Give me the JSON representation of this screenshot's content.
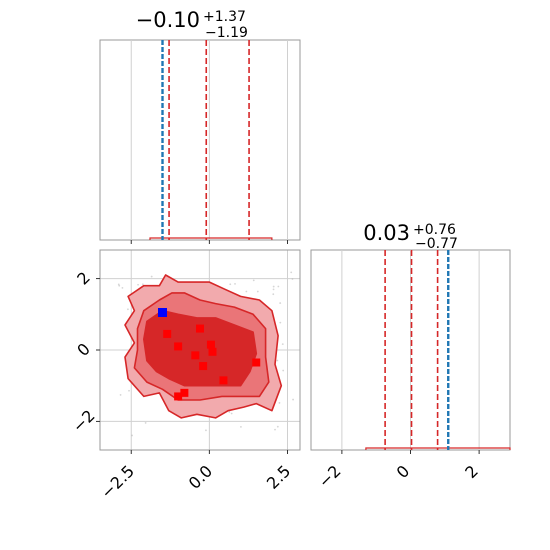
{
  "chart_data": [
    {
      "type": "histogram",
      "panel": "param-1-marginal",
      "title": {
        "median": "−0.10",
        "plus": "+1.37",
        "minus": "−1.19"
      },
      "xlim": [
        -3.5,
        2.9
      ],
      "ylim": [
        0,
        1
      ],
      "quantile_lines": [
        -1.29,
        -0.1,
        1.27
      ],
      "truth_line": -1.5,
      "hist_range": [
        -1.9,
        2.0
      ],
      "hist_level": 0.01,
      "grid": true,
      "colors": {
        "quantile": "#d62728",
        "truth": "#1f77b4",
        "hist": "#d62728"
      }
    },
    {
      "type": "histogram",
      "panel": "param-2-marginal",
      "title": {
        "median": "0.03",
        "plus": "+0.76",
        "minus": "−0.77"
      },
      "xlim": [
        -2.9,
        2.9
      ],
      "ylim": [
        0,
        1
      ],
      "xticks": [
        -2,
        0,
        2
      ],
      "xtick_labels": [
        "−2",
        "0",
        "2"
      ],
      "quantile_lines": [
        -0.74,
        0.03,
        0.79
      ],
      "truth_line": 1.1,
      "hist_range": [
        -1.3,
        2.9
      ],
      "hist_level": 0.01,
      "grid": true,
      "colors": {
        "quantile": "#d62728",
        "truth": "#1f77b4",
        "hist": "#d62728"
      }
    },
    {
      "type": "scatter",
      "panel": "joint-2d",
      "xlim": [
        -3.5,
        2.9
      ],
      "ylim": [
        -2.8,
        2.8
      ],
      "xticks": [
        -2.5,
        0.0,
        2.5
      ],
      "xtick_labels": [
        "−2.5",
        "0.0",
        "2.5"
      ],
      "yticks": [
        -2,
        0,
        2
      ],
      "ytick_labels": [
        "−2",
        "0",
        "2"
      ],
      "grid": true,
      "contours": [
        {
          "level": "outer",
          "fill": "#f2aaad",
          "outline": "#d62728",
          "polygon": [
            [
              -1.4,
              2.1
            ],
            [
              -1.0,
              1.9
            ],
            [
              -0.7,
              1.9
            ],
            [
              -0.4,
              1.9
            ],
            [
              0.0,
              1.9
            ],
            [
              0.5,
              1.7
            ],
            [
              1.0,
              1.5
            ],
            [
              1.6,
              1.4
            ],
            [
              2.0,
              1.1
            ],
            [
              2.2,
              0.4
            ],
            [
              2.1,
              -0.4
            ],
            [
              2.3,
              -1.0
            ],
            [
              2.0,
              -1.7
            ],
            [
              1.5,
              -1.5
            ],
            [
              1.1,
              -1.6
            ],
            [
              0.6,
              -1.7
            ],
            [
              0.2,
              -1.9
            ],
            [
              -0.4,
              -1.8
            ],
            [
              -0.9,
              -1.9
            ],
            [
              -1.3,
              -1.7
            ],
            [
              -1.6,
              -1.2
            ],
            [
              -2.1,
              -1.3
            ],
            [
              -2.6,
              -0.8
            ],
            [
              -2.7,
              -0.2
            ],
            [
              -2.4,
              0.2
            ],
            [
              -2.7,
              0.7
            ],
            [
              -2.4,
              1.1
            ],
            [
              -2.6,
              1.5
            ],
            [
              -2.1,
              1.8
            ],
            [
              -1.6,
              1.8
            ]
          ]
        },
        {
          "level": "middle",
          "fill": "#ea7578",
          "outline": "#d62728",
          "polygon": [
            [
              -1.6,
              1.4
            ],
            [
              -1.2,
              1.6
            ],
            [
              -0.8,
              1.6
            ],
            [
              -0.3,
              1.4
            ],
            [
              0.2,
              1.3
            ],
            [
              0.8,
              1.2
            ],
            [
              1.4,
              1.0
            ],
            [
              1.8,
              0.6
            ],
            [
              1.8,
              -0.2
            ],
            [
              1.9,
              -0.9
            ],
            [
              1.6,
              -1.3
            ],
            [
              1.1,
              -1.3
            ],
            [
              0.4,
              -1.3
            ],
            [
              -0.3,
              -1.4
            ],
            [
              -1.0,
              -1.4
            ],
            [
              -1.5,
              -1.1
            ],
            [
              -2.0,
              -0.9
            ],
            [
              -2.4,
              -0.5
            ],
            [
              -2.3,
              0.0
            ],
            [
              -2.3,
              0.6
            ],
            [
              -2.1,
              1.1
            ]
          ]
        },
        {
          "level": "inner",
          "fill": "#d62728",
          "outline": "#d62728",
          "polygon": [
            [
              -2.0,
              0.8
            ],
            [
              -1.5,
              1.1
            ],
            [
              -1.0,
              1.0
            ],
            [
              -0.4,
              0.9
            ],
            [
              0.2,
              0.9
            ],
            [
              0.8,
              0.7
            ],
            [
              1.4,
              0.5
            ],
            [
              1.5,
              -0.1
            ],
            [
              1.3,
              -0.6
            ],
            [
              1.0,
              -1.0
            ],
            [
              0.4,
              -1.0
            ],
            [
              -0.2,
              -1.0
            ],
            [
              -0.8,
              -1.0
            ],
            [
              -1.3,
              -0.8
            ],
            [
              -1.7,
              -0.6
            ],
            [
              -2.0,
              -0.3
            ],
            [
              -2.1,
              0.3
            ]
          ]
        }
      ],
      "red_points": [
        [
          -1.35,
          0.45
        ],
        [
          -1.0,
          0.1
        ],
        [
          -0.45,
          -0.15
        ],
        [
          -0.3,
          0.6
        ],
        [
          -0.2,
          -0.45
        ],
        [
          0.05,
          0.15
        ],
        [
          0.1,
          -0.05
        ],
        [
          0.45,
          -0.85
        ],
        [
          1.5,
          -0.35
        ],
        [
          -0.8,
          -1.2
        ],
        [
          -1.0,
          -1.3
        ]
      ],
      "truth_point": [
        -1.5,
        1.05
      ],
      "colors": {
        "points": "#ff0000",
        "truth": "#0000ff"
      }
    }
  ]
}
